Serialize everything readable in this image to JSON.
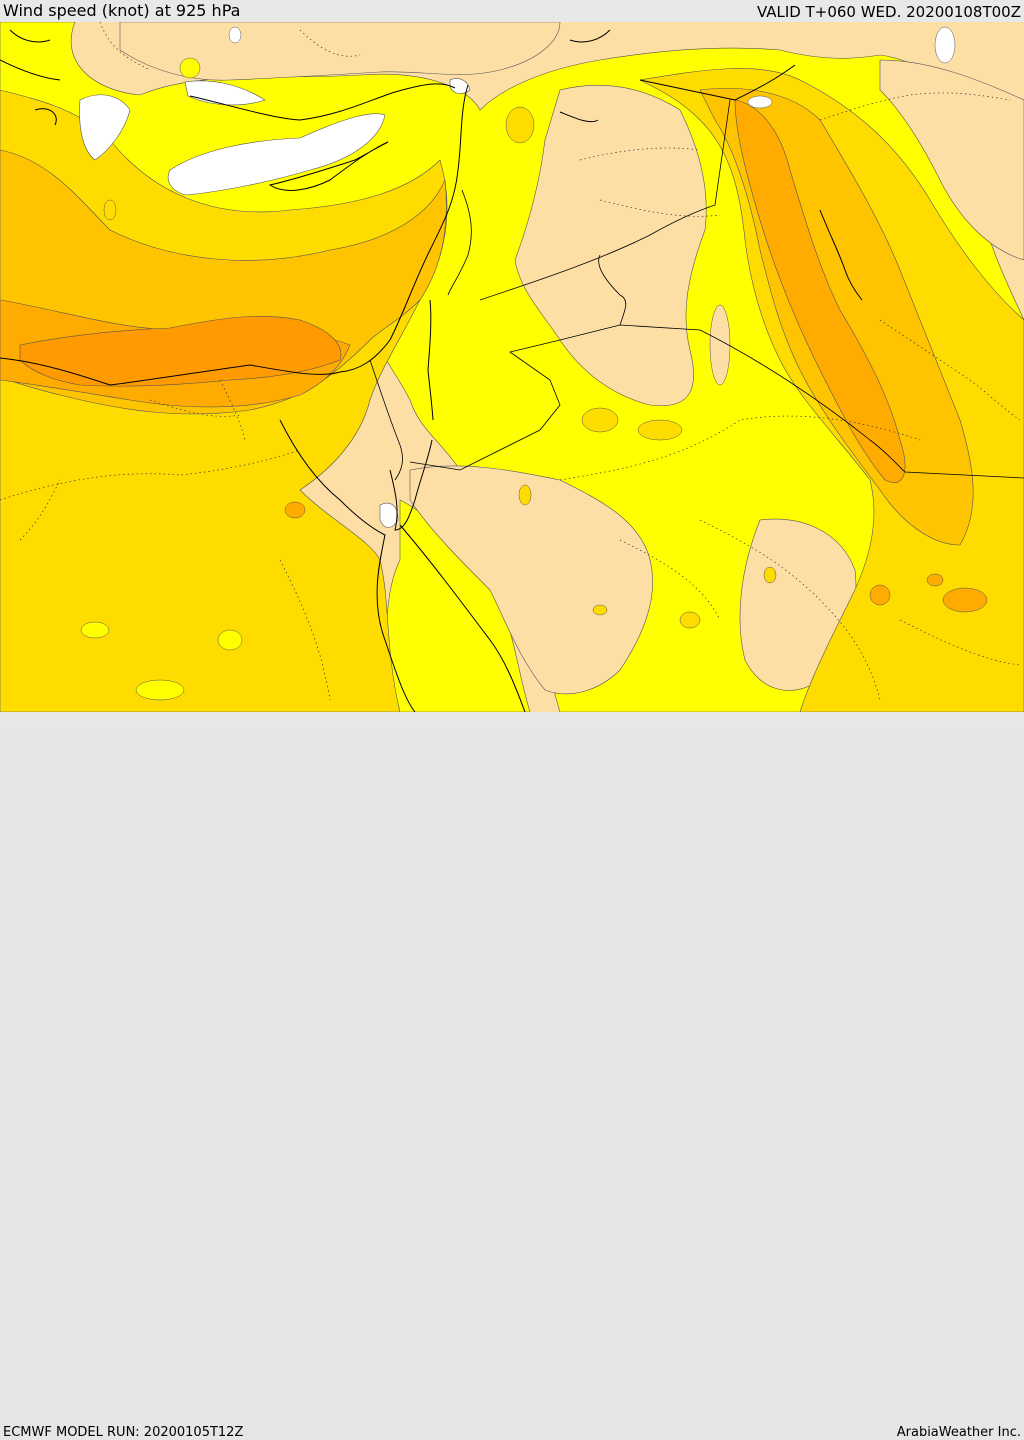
{
  "header": {
    "title": "Wind speed (knot) at 925 hPa",
    "valid": "VALID T+060 WED. 20200108T00Z"
  },
  "footer": {
    "model_run": "ECMWF MODEL RUN: 20200105T12Z",
    "credit": "ArabiaWeather Inc."
  },
  "map": {
    "field": "wind-speed",
    "colors": {
      "background": "#fddfa5",
      "light_yellow": "#ffff00",
      "yellow": "#ffdc00",
      "gold": "#ffc400",
      "amber": "#ffab00",
      "orange": "#ff9a00",
      "calm": "#ffffff",
      "boundaries": "#000000"
    }
  }
}
